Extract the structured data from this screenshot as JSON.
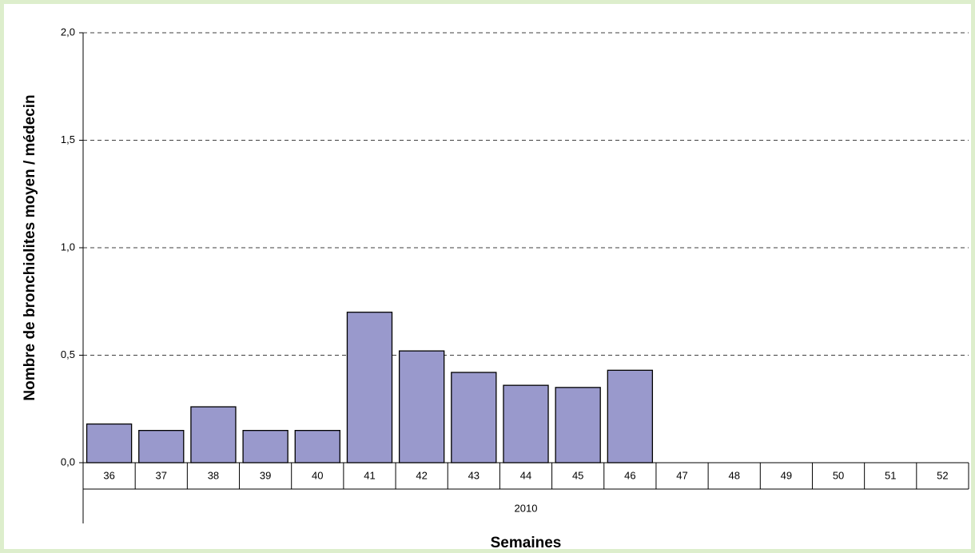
{
  "chart_data": {
    "type": "bar",
    "xlabel": "Semaines",
    "ylabel": "Nombre de bronchiolites moyen / médecin",
    "group_label": "2010",
    "categories": [
      "36",
      "37",
      "38",
      "39",
      "40",
      "41",
      "42",
      "43",
      "44",
      "45",
      "46",
      "47",
      "48",
      "49",
      "50",
      "51",
      "52"
    ],
    "values": [
      0.18,
      0.15,
      0.26,
      0.15,
      0.15,
      0.7,
      0.52,
      0.42,
      0.36,
      0.35,
      0.43,
      null,
      null,
      null,
      null,
      null,
      null
    ],
    "color": "#9999cc",
    "ylim": [
      0,
      2
    ],
    "yticks": [
      {
        "value": 0,
        "label": "0,0"
      },
      {
        "value": 0.5,
        "label": "0,5"
      },
      {
        "value": 1,
        "label": "1,0"
      },
      {
        "value": 1.5,
        "label": "1,5"
      },
      {
        "value": 2,
        "label": "2,0"
      }
    ],
    "grid": true
  }
}
